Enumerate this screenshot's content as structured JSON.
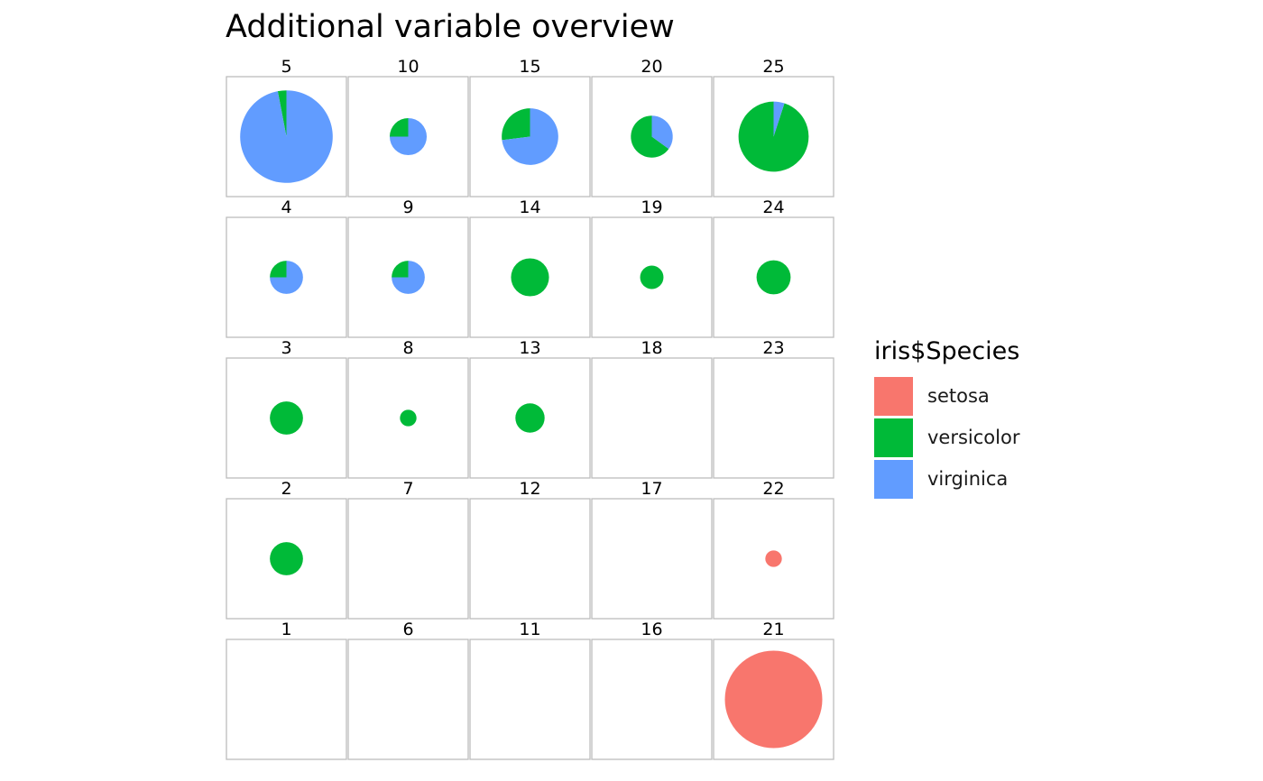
{
  "chart_data": {
    "type": "pie",
    "title": "Additional variable overview",
    "panel_type": "som-codebook-pie-grid",
    "grid": {
      "columns": 5,
      "rows": 5
    },
    "legend": {
      "title": "iris$Species",
      "placement": "right",
      "entries": [
        {
          "name": "setosa",
          "color": "#F8766D"
        },
        {
          "name": "versicolor",
          "color": "#00BA38"
        },
        {
          "name": "virginica",
          "color": "#619CFF"
        }
      ]
    },
    "cells": [
      {
        "label": "5",
        "row": 0,
        "col": 0,
        "size": 0.95,
        "values": {
          "setosa": 0,
          "versicolor": 0.03,
          "virginica": 0.97
        }
      },
      {
        "label": "10",
        "row": 0,
        "col": 1,
        "size": 0.38,
        "values": {
          "setosa": 0,
          "versicolor": 0.25,
          "virginica": 0.75
        }
      },
      {
        "label": "15",
        "row": 0,
        "col": 2,
        "size": 0.58,
        "values": {
          "setosa": 0,
          "versicolor": 0.27,
          "virginica": 0.73
        }
      },
      {
        "label": "20",
        "row": 0,
        "col": 3,
        "size": 0.43,
        "values": {
          "setosa": 0,
          "versicolor": 0.65,
          "virginica": 0.35
        }
      },
      {
        "label": "25",
        "row": 0,
        "col": 4,
        "size": 0.72,
        "values": {
          "setosa": 0,
          "versicolor": 0.95,
          "virginica": 0.05
        }
      },
      {
        "label": "4",
        "row": 1,
        "col": 0,
        "size": 0.34,
        "values": {
          "setosa": 0,
          "versicolor": 0.25,
          "virginica": 0.75
        }
      },
      {
        "label": "9",
        "row": 1,
        "col": 1,
        "size": 0.34,
        "values": {
          "setosa": 0,
          "versicolor": 0.25,
          "virginica": 0.75
        }
      },
      {
        "label": "14",
        "row": 1,
        "col": 2,
        "size": 0.39,
        "values": {
          "setosa": 0,
          "versicolor": 1,
          "virginica": 0
        }
      },
      {
        "label": "19",
        "row": 1,
        "col": 3,
        "size": 0.24,
        "values": {
          "setosa": 0,
          "versicolor": 1,
          "virginica": 0
        }
      },
      {
        "label": "24",
        "row": 1,
        "col": 4,
        "size": 0.35,
        "values": {
          "setosa": 0,
          "versicolor": 1,
          "virginica": 0
        }
      },
      {
        "label": "3",
        "row": 2,
        "col": 0,
        "size": 0.34,
        "values": {
          "setosa": 0,
          "versicolor": 1,
          "virginica": 0
        }
      },
      {
        "label": "8",
        "row": 2,
        "col": 1,
        "size": 0.17,
        "values": {
          "setosa": 0,
          "versicolor": 1,
          "virginica": 0
        }
      },
      {
        "label": "13",
        "row": 2,
        "col": 2,
        "size": 0.3,
        "values": {
          "setosa": 0,
          "versicolor": 1,
          "virginica": 0
        }
      },
      {
        "label": "18",
        "row": 2,
        "col": 3,
        "size": 0,
        "values": {
          "setosa": 0,
          "versicolor": 0,
          "virginica": 0
        }
      },
      {
        "label": "23",
        "row": 2,
        "col": 4,
        "size": 0,
        "values": {
          "setosa": 0,
          "versicolor": 0,
          "virginica": 0
        }
      },
      {
        "label": "2",
        "row": 3,
        "col": 0,
        "size": 0.34,
        "values": {
          "setosa": 0,
          "versicolor": 1,
          "virginica": 0
        }
      },
      {
        "label": "7",
        "row": 3,
        "col": 1,
        "size": 0,
        "values": {
          "setosa": 0,
          "versicolor": 0,
          "virginica": 0
        }
      },
      {
        "label": "12",
        "row": 3,
        "col": 2,
        "size": 0,
        "values": {
          "setosa": 0,
          "versicolor": 0,
          "virginica": 0
        }
      },
      {
        "label": "17",
        "row": 3,
        "col": 3,
        "size": 0,
        "values": {
          "setosa": 0,
          "versicolor": 0,
          "virginica": 0
        }
      },
      {
        "label": "22",
        "row": 3,
        "col": 4,
        "size": 0.17,
        "values": {
          "setosa": 1,
          "versicolor": 0,
          "virginica": 0
        }
      },
      {
        "label": "1",
        "row": 4,
        "col": 0,
        "size": 0,
        "values": {
          "setosa": 0,
          "versicolor": 0,
          "virginica": 0
        }
      },
      {
        "label": "6",
        "row": 4,
        "col": 1,
        "size": 0,
        "values": {
          "setosa": 0,
          "versicolor": 0,
          "virginica": 0
        }
      },
      {
        "label": "11",
        "row": 4,
        "col": 2,
        "size": 0,
        "values": {
          "setosa": 0,
          "versicolor": 0,
          "virginica": 0
        }
      },
      {
        "label": "16",
        "row": 4,
        "col": 3,
        "size": 0,
        "values": {
          "setosa": 0,
          "versicolor": 0,
          "virginica": 0
        }
      },
      {
        "label": "21",
        "row": 4,
        "col": 4,
        "size": 1.0,
        "values": {
          "setosa": 1,
          "versicolor": 0,
          "virginica": 0
        }
      }
    ]
  }
}
